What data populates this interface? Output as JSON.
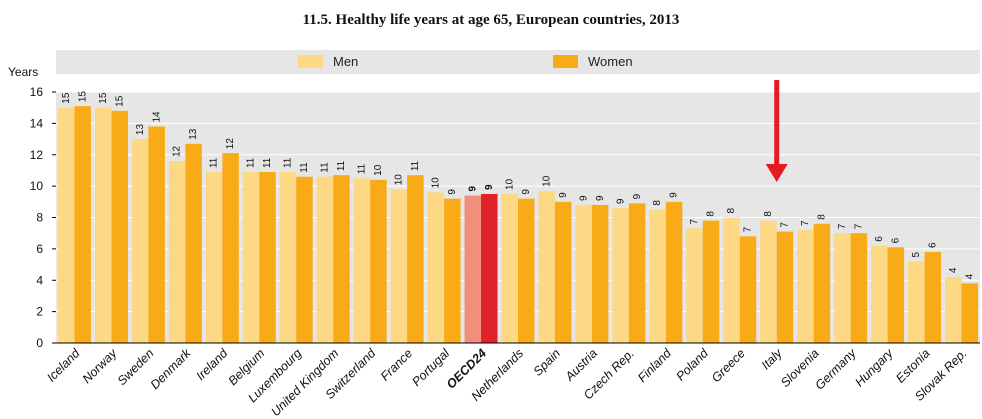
{
  "chart_data": {
    "type": "bar",
    "title": "11.5. Healthy life years at age 65, European countries, 2013",
    "ylabel": "Years",
    "ylim": [
      0,
      16
    ],
    "yticks": [
      "0",
      "2",
      "4",
      "6",
      "8",
      "10",
      "12",
      "14",
      "16"
    ],
    "grid": true,
    "legend_position": "top",
    "categories": [
      "Iceland",
      "Norway",
      "Sweden",
      "Denmark",
      "Ireland",
      "Belgium",
      "Luxembourg",
      "United Kingdom",
      "Switzerland",
      "France",
      "Portugal",
      "OECD24",
      "Netherlands",
      "Spain",
      "Austria",
      "Czech Rep.",
      "Finland",
      "Poland",
      "Greece",
      "Italy",
      "Slovenia",
      "Germany",
      "Hungary",
      "Estonia",
      "Slovak Rep."
    ],
    "category_labels": [
      "Iceland",
      "Norway",
      "Sweden",
      "Denmark",
      "Ireland",
      "Belgium",
      "Luxembourg",
      "United Kingdom",
      "Switzerland",
      "France",
      "Portugal",
      "OECD24",
      "Netherlands",
      "Spain",
      "Austria",
      "Czech Rep.",
      "Finland",
      "Poland",
      "Greece",
      "Italy",
      "Slovenia",
      "Germany",
      "Hungary",
      "Estonia",
      "Slovak Rep."
    ],
    "highlight_category": "OECD24",
    "series": [
      {
        "name": "Men",
        "color": "#fdd885",
        "highlight_color": "#f0907c",
        "values": [
          15.0,
          15.0,
          13.0,
          11.6,
          10.9,
          10.9,
          10.9,
          10.6,
          10.5,
          9.8,
          9.6,
          9.4,
          9.5,
          9.7,
          8.8,
          8.6,
          8.5,
          7.3,
          8.0,
          7.8,
          7.2,
          7.0,
          6.2,
          5.2,
          4.2
        ],
        "labels": [
          "15",
          "15",
          "13",
          "12",
          "11",
          "11",
          "11",
          "11",
          "11",
          "10",
          "10",
          "9",
          "10",
          "10",
          "9",
          "9",
          "8",
          "7",
          "8",
          "8",
          "7",
          "7",
          "6",
          "5",
          "4"
        ]
      },
      {
        "name": "Women",
        "color": "#f9ab17",
        "highlight_color": "#e0232b",
        "values": [
          15.1,
          14.8,
          13.8,
          12.7,
          12.1,
          10.9,
          10.6,
          10.7,
          10.4,
          10.7,
          9.2,
          9.5,
          9.2,
          9.0,
          8.8,
          8.9,
          9.0,
          7.8,
          6.8,
          7.1,
          7.6,
          7.0,
          6.1,
          5.8,
          3.8
        ],
        "labels": [
          "15",
          "15",
          "14",
          "13",
          "12",
          "11",
          "11",
          "11",
          "10",
          "11",
          "9",
          "9",
          "9",
          "9",
          "9",
          "9",
          "9",
          "8",
          "7",
          "7",
          "8",
          "7",
          "6",
          "6",
          "4"
        ]
      }
    ],
    "annotation": {
      "type": "arrow",
      "target_category": "Italy",
      "color": "#e31b23"
    }
  }
}
